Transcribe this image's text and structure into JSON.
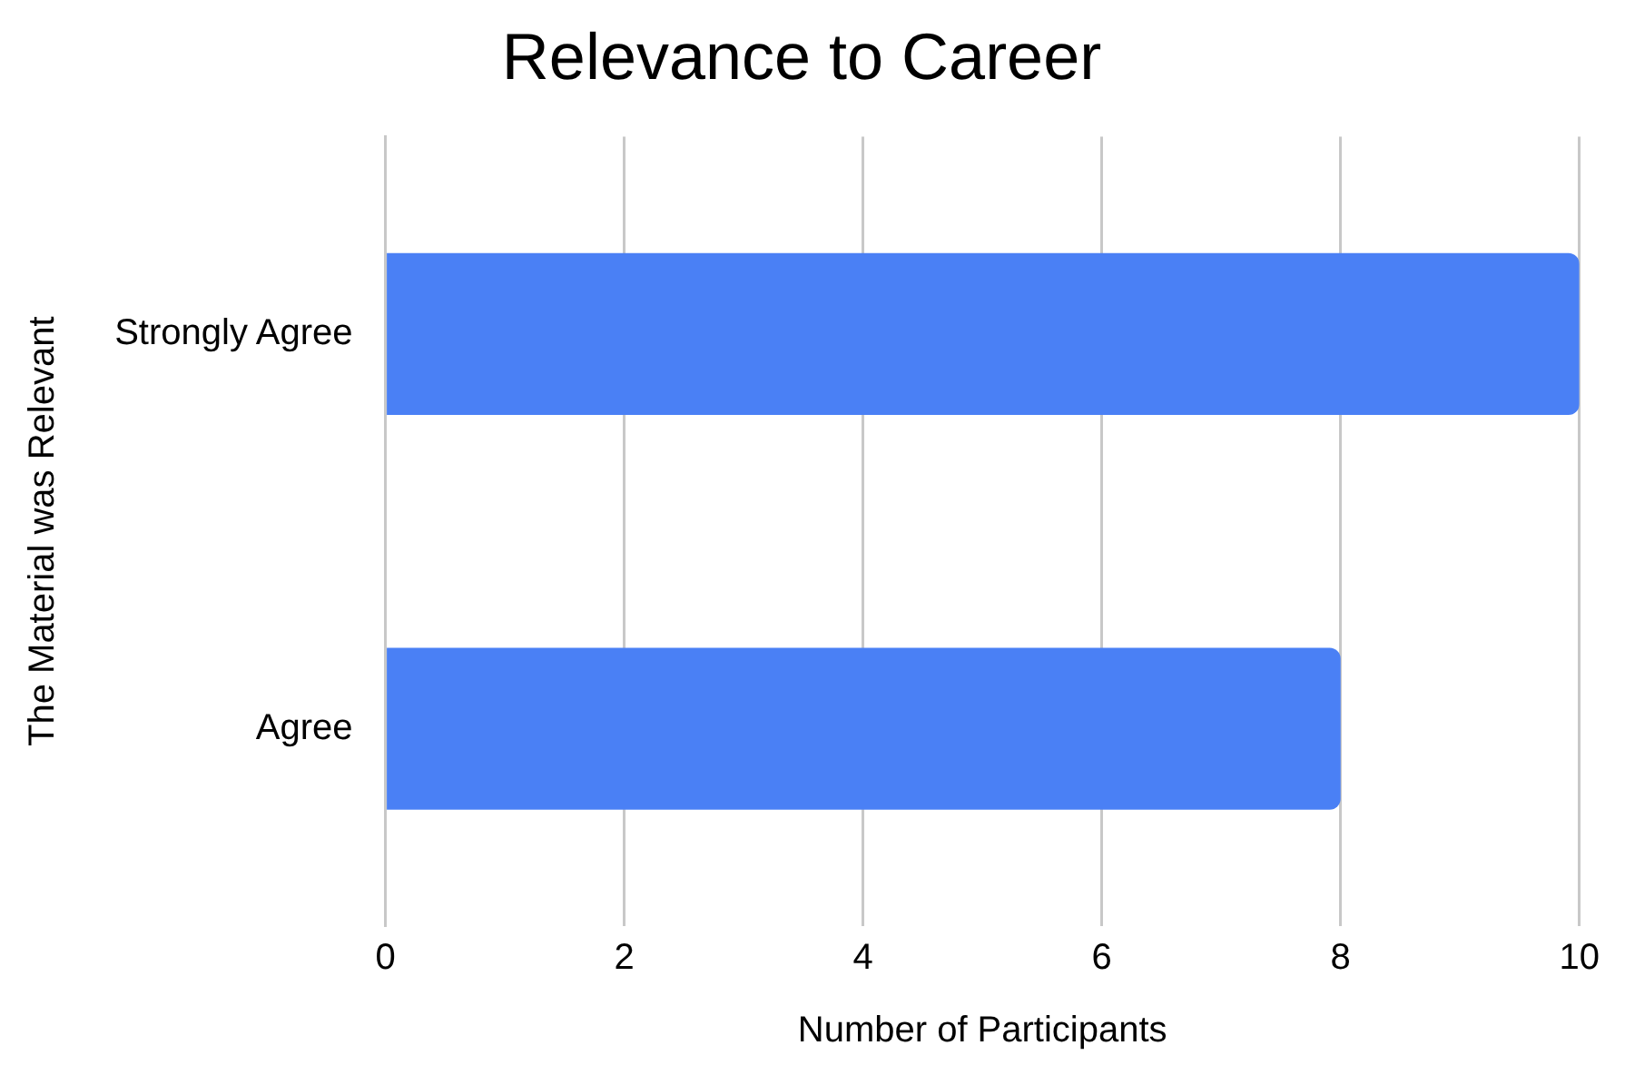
{
  "chart_data": {
    "type": "bar",
    "orientation": "horizontal",
    "title": "Relevance to Career",
    "xlabel": "Number of Participants",
    "ylabel": "The Material was Relevant",
    "categories": [
      "Strongly Agree",
      "Agree"
    ],
    "values": [
      10,
      8
    ],
    "color": "#4a80f5",
    "xlim": [
      0,
      10
    ],
    "xticks": [
      0,
      2,
      4,
      6,
      8,
      10
    ],
    "grid": "x",
    "legend": false
  }
}
